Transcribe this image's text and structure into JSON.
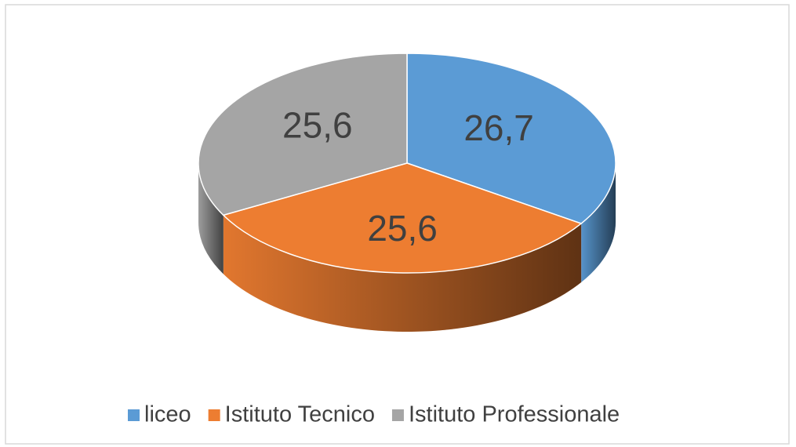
{
  "chart_data": {
    "type": "pie",
    "categories": [
      "liceo",
      "Istituto Tecnico",
      "Istituto Professionale"
    ],
    "values": [
      26.7,
      25.6,
      25.6
    ],
    "value_labels": [
      "26,7",
      "25,6",
      "25,6"
    ],
    "colors": [
      "#5b9bd5",
      "#ed7d31",
      "#a5a5a5"
    ],
    "legend": "bottom"
  }
}
